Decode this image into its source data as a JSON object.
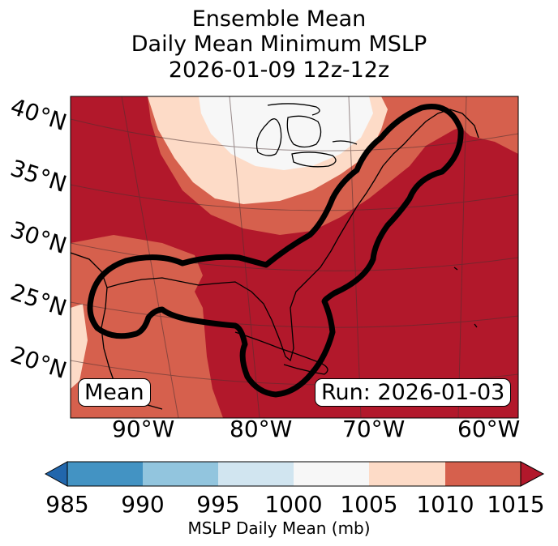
{
  "title": {
    "line1": "Ensemble Mean",
    "line2": "Daily Mean Minimum MSLP",
    "line3": "2026-01-09 12z-12z"
  },
  "map": {
    "lat_labels": [
      "40°N",
      "35°N",
      "30°N",
      "25°N",
      "20°N"
    ],
    "lon_labels": [
      "90°W",
      "80°W",
      "70°W",
      "60°W"
    ],
    "mean_tag": "Mean",
    "run_tag": "Run: 2026-01-03",
    "contour_color": "#000000"
  },
  "colorbar": {
    "ticks": [
      "985",
      "990",
      "995",
      "1000",
      "1005",
      "1010",
      "1015"
    ],
    "label": "MSLP Daily Mean (mb)",
    "colors": [
      "#2166ac",
      "#4393c3",
      "#92c5de",
      "#d1e5f0",
      "#f7f7f7",
      "#fddbc7",
      "#d6604d",
      "#b2182b"
    ]
  }
}
